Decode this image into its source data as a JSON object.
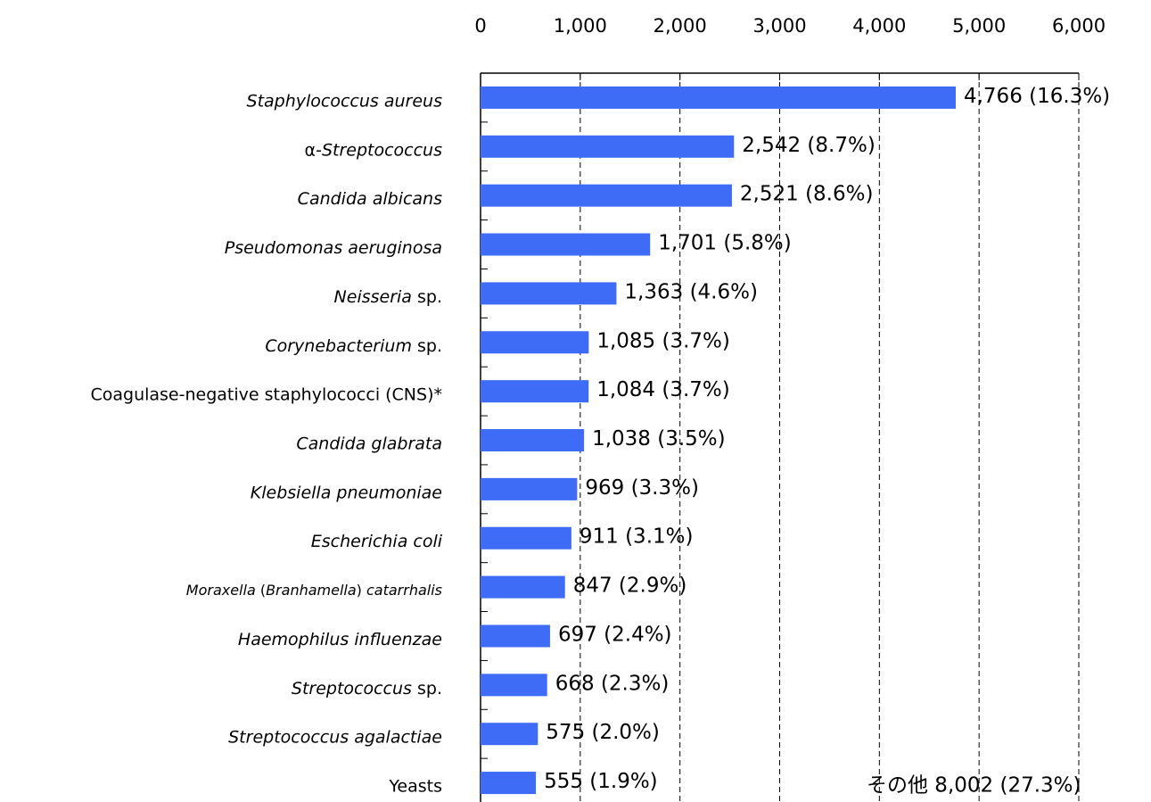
{
  "chart_data": {
    "type": "barh",
    "categories": [
      [
        {
          "text": "Staphylococcus aureus",
          "italic": true
        }
      ],
      [
        {
          "text": "α-",
          "italic": false
        },
        {
          "text": "Streptococcus",
          "italic": true
        }
      ],
      [
        {
          "text": "Candida albicans",
          "italic": true
        }
      ],
      [
        {
          "text": "Pseudomonas aeruginosa",
          "italic": true
        }
      ],
      [
        {
          "text": "Neisseria",
          "italic": true
        },
        {
          "text": " sp.",
          "italic": false
        }
      ],
      [
        {
          "text": "Corynebacterium",
          "italic": true
        },
        {
          "text": " sp.",
          "italic": false
        }
      ],
      [
        {
          "text": "Coagulase-negative staphylococci (CNS)*",
          "italic": false
        }
      ],
      [
        {
          "text": "Candida glabrata",
          "italic": true
        }
      ],
      [
        {
          "text": "Klebsiella pneumoniae",
          "italic": true
        }
      ],
      [
        {
          "text": "Escherichia coli",
          "italic": true
        }
      ],
      [
        {
          "text": "Moraxella",
          "italic": true
        },
        {
          "text": " (",
          "italic": false
        },
        {
          "text": "Branhamella",
          "italic": true
        },
        {
          "text": ") ",
          "italic": false
        },
        {
          "text": "catarrhalis",
          "italic": true
        }
      ],
      [
        {
          "text": "Haemophilus influenzae",
          "italic": true
        }
      ],
      [
        {
          "text": "Streptococcus",
          "italic": true
        },
        {
          "text": " sp.",
          "italic": false
        }
      ],
      [
        {
          "text": "Streptococcus agalactiae",
          "italic": true
        }
      ],
      [
        {
          "text": "Yeasts",
          "italic": false
        }
      ]
    ],
    "values": [
      4766,
      2542,
      2521,
      1701,
      1363,
      1085,
      1084,
      1038,
      969,
      911,
      847,
      697,
      668,
      575,
      555
    ],
    "value_labels": [
      "4,766 (16.3%)",
      "2,542 (8.7%)",
      "2,521 (8.6%)",
      "1,701 (5.8%)",
      "1,363 (4.6%)",
      "1,085 (3.7%)",
      "1,084 (3.7%)",
      "1,038 (3.5%)",
      "969 (3.3%)",
      "911 (3.1%)",
      "847 (2.9%)",
      "697 (2.4%)",
      "668 (2.3%)",
      "575 (2.0%)",
      "555 (1.9%)"
    ],
    "color": "#3f6cf6",
    "xlim": [
      0,
      6000
    ],
    "xticks": [
      0,
      {
        "value": 1000,
        "label": "1,000"
      },
      {
        "value": 2000,
        "label": "2,000"
      },
      {
        "value": 3000,
        "label": "3,000"
      },
      {
        "value": 4000,
        "label": "4,000"
      },
      {
        "value": 5000,
        "label": "5,000"
      },
      {
        "value": 6000,
        "label": "6,000"
      }
    ],
    "grid": true,
    "annotation": "その他 8,002 (27.3%)"
  }
}
